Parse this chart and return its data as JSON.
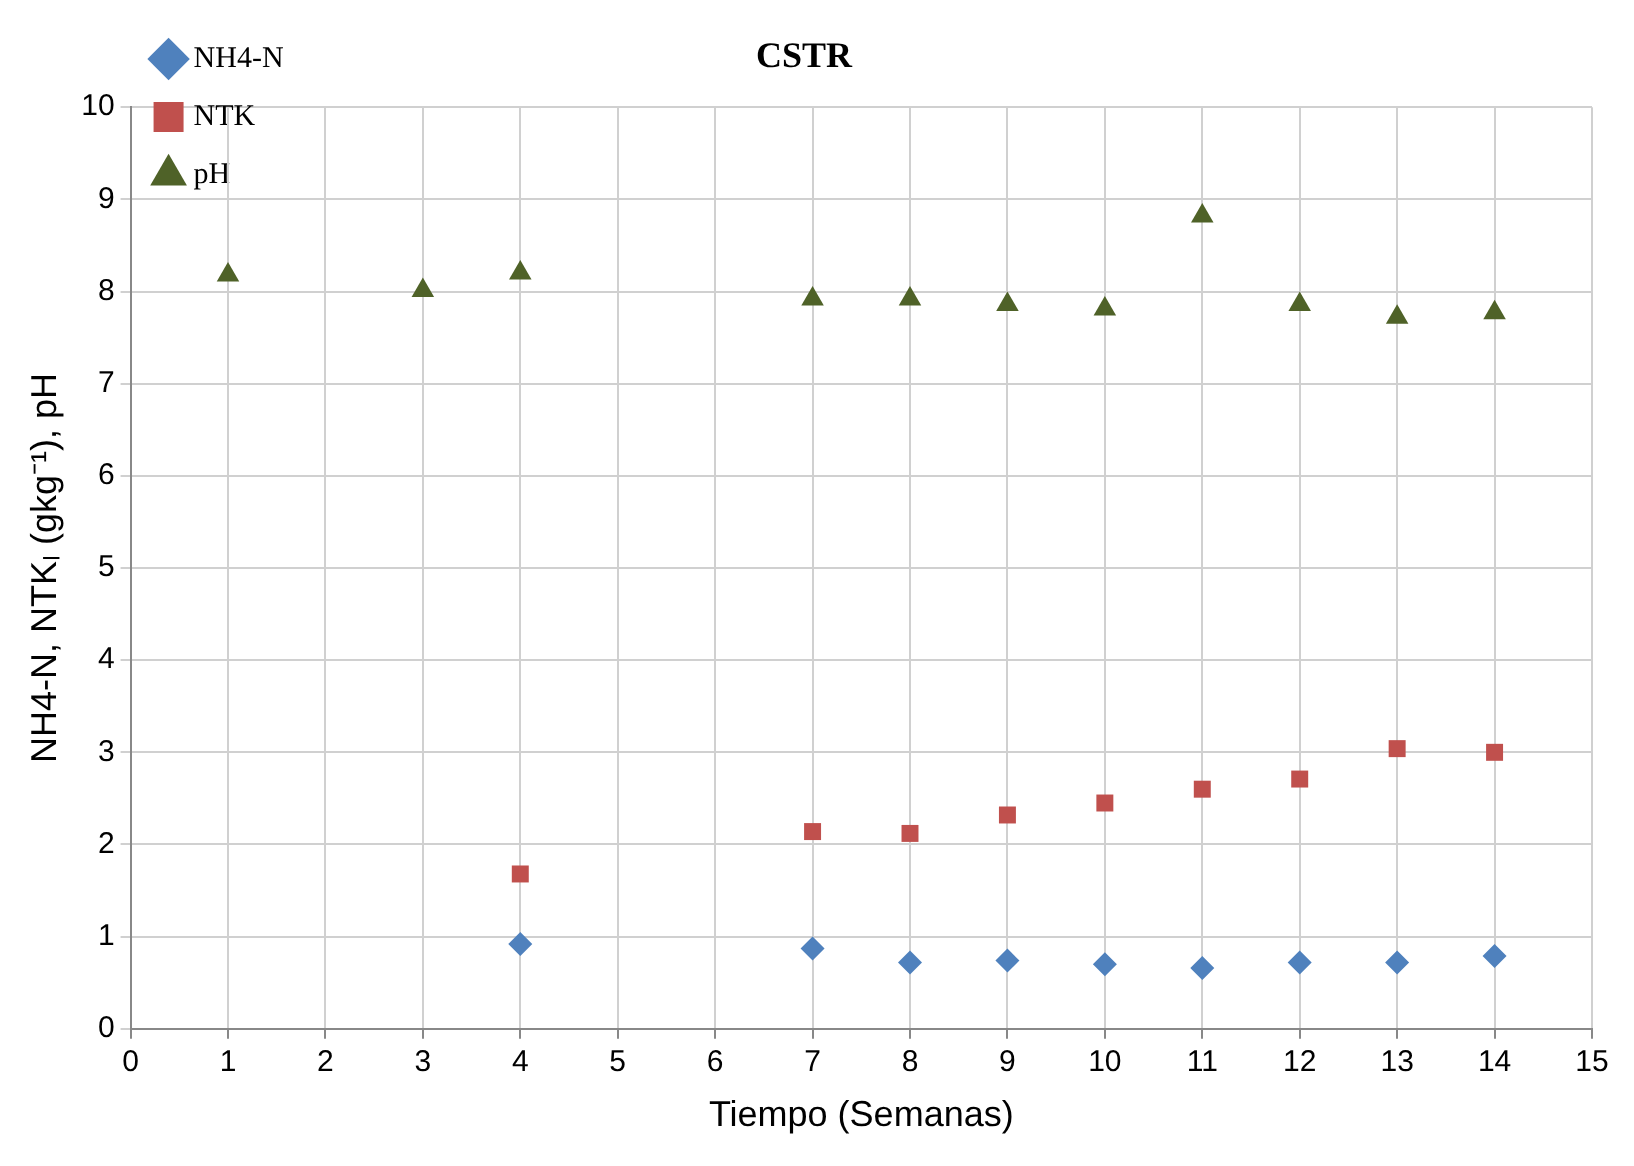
{
  "chart_data": {
    "type": "scatter",
    "title": "CSTR",
    "xlabel": "Tiempo (Semanas)",
    "ylabel": "NH4-N, NTKₗ (gkg⁻¹), pH",
    "xlim": [
      0,
      15
    ],
    "xticks": [
      0,
      1,
      2,
      3,
      4,
      5,
      6,
      7,
      8,
      9,
      10,
      11,
      12,
      13,
      14,
      15
    ],
    "ylim": [
      0,
      10
    ],
    "yticks": [
      0,
      1,
      2,
      3,
      4,
      5,
      6,
      7,
      8,
      9,
      10
    ],
    "grid": true,
    "legend": "top left",
    "series": [
      {
        "name": "NH4-N",
        "color": "#4f81bd",
        "marker": "diamond",
        "x": [
          4,
          7,
          8,
          9,
          10,
          11,
          12,
          13,
          14
        ],
        "values": [
          0.92,
          0.87,
          0.72,
          0.74,
          0.7,
          0.66,
          0.72,
          0.72,
          0.79
        ]
      },
      {
        "name": "NTK",
        "color": "#c0504d",
        "marker": "square",
        "x": [
          4,
          7,
          8,
          9,
          10,
          11,
          12,
          13,
          14
        ],
        "values": [
          1.68,
          2.14,
          2.12,
          2.32,
          2.45,
          2.6,
          2.71,
          3.04,
          3.0
        ]
      },
      {
        "name": "pH",
        "color": "#4f6228",
        "marker": "triangle",
        "x": [
          1,
          3,
          4,
          7,
          8,
          9,
          10,
          11,
          12,
          13,
          14
        ],
        "values": [
          8.18,
          8.01,
          8.2,
          7.92,
          7.92,
          7.86,
          7.81,
          8.82,
          7.86,
          7.72,
          7.77
        ]
      }
    ]
  }
}
